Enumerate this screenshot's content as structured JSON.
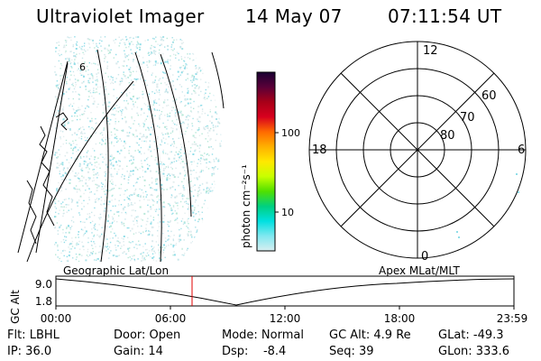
{
  "header": {
    "title": "Ultraviolet Imager",
    "date": "14 May 07",
    "time": "07:11:54 UT"
  },
  "colorbar": {
    "unit_label": "photon cm⁻²s⁻¹",
    "ticks": [
      "100",
      "10"
    ],
    "colors": [
      "#1a0033",
      "#5a0038",
      "#a80018",
      "#d8001e",
      "#ff6a00",
      "#ffb000",
      "#ffe800",
      "#c8ff00",
      "#50e000",
      "#00d080",
      "#00e0e0",
      "#80e8f0",
      "#d8eef0"
    ]
  },
  "polar": {
    "mlt_labels": {
      "top": "12",
      "left": "18",
      "right": "6",
      "bottom": "0"
    },
    "lat_labels": [
      "60",
      "70",
      "80"
    ]
  },
  "timeline": {
    "left_label": "Geographic Lat/Lon",
    "right_label": "Apex  MLat/MLT",
    "axis_label": "GC Alt",
    "y_ticks": [
      "9.0",
      "1.8"
    ],
    "x_ticks": [
      "00:00",
      "06:00",
      "12:00",
      "18:00",
      "23:59"
    ],
    "current_marker_color": "#e00000"
  },
  "info": {
    "filter": "Flt: LBHL",
    "door": "Door: Open",
    "mode": "Mode: Normal",
    "gc_alt": "GC Alt: 4.9 Re",
    "glat": "GLat: -49.3",
    "ip": "IP: 36.0",
    "gain": "Gain: 14",
    "dsp": "Dsp:    -8.4",
    "seq": "Seq: 39",
    "glon": "GLon: 333.6"
  },
  "earth_labels": {
    "coast_number": "6"
  }
}
